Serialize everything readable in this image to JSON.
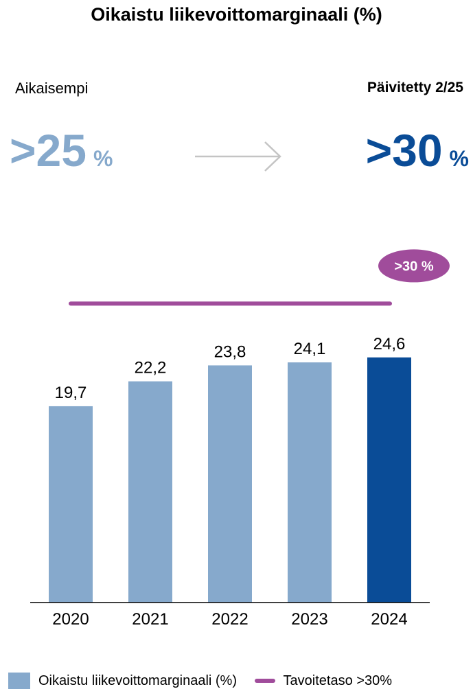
{
  "chart_data": {
    "type": "bar",
    "title": "Oikaistu liikevoittomarginaali (%)",
    "categories": [
      "2020",
      "2021",
      "2022",
      "2023",
      "2024"
    ],
    "values": [
      19.7,
      22.2,
      23.8,
      24.1,
      24.6
    ],
    "value_labels": [
      "19,7",
      "22,2",
      "23,8",
      "24,1",
      "24,6"
    ],
    "highlight_index": 4,
    "target_value": 30,
    "target_label": ">30 %",
    "legend": {
      "placement": "bottom",
      "bar_series": "Oikaistu liikevoittomarginaali (%)",
      "line_series": "Tavoitetaso >30%"
    },
    "colors": {
      "bar": "#86a9cc",
      "highlight": "#0a4c97",
      "target": "#a04c9b"
    },
    "grid": false
  },
  "header": {
    "previous_label": "Aikaisempi",
    "updated_label": "Päivitetty 2/25",
    "previous_value": ">25",
    "updated_value": ">30",
    "percent_sign": "%"
  }
}
